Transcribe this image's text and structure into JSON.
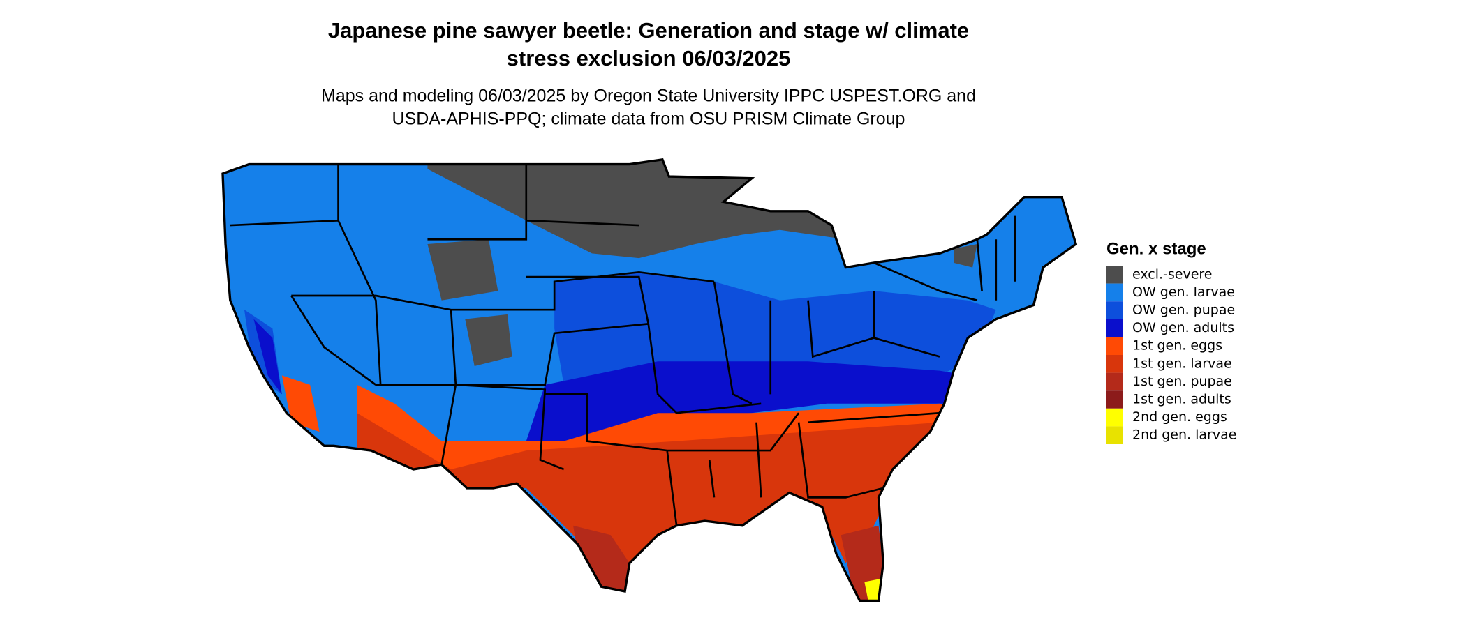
{
  "title": [
    "Japanese pine sawyer beetle: Generation and stage w/ climate",
    "stress exclusion 06/03/2025"
  ],
  "subtitle": [
    "Maps and modeling 06/03/2025 by Oregon State University IPPC USPEST.ORG and",
    "USDA-APHIS-PPQ; climate data from OSU PRISM Climate Group"
  ],
  "legend": {
    "title": "Gen. x stage",
    "items": [
      {
        "label": "excl.-severe",
        "color": "#4d4d4d"
      },
      {
        "label": "OW gen. larvae",
        "color": "#1580ea"
      },
      {
        "label": "OW gen. pupae",
        "color": "#0d4fdc"
      },
      {
        "label": "OW gen. adults",
        "color": "#0a0fcc"
      },
      {
        "label": "1st gen. eggs",
        "color": "#ff4a05"
      },
      {
        "label": "1st gen. larvae",
        "color": "#d8360c"
      },
      {
        "label": "1st gen. pupae",
        "color": "#b42a1a"
      },
      {
        "label": "1st gen. adults",
        "color": "#8c1b1b"
      },
      {
        "label": "2nd gen. eggs",
        "color": "#ffff00"
      },
      {
        "label": "2nd gen. larvae",
        "color": "#e8e200"
      }
    ]
  }
}
